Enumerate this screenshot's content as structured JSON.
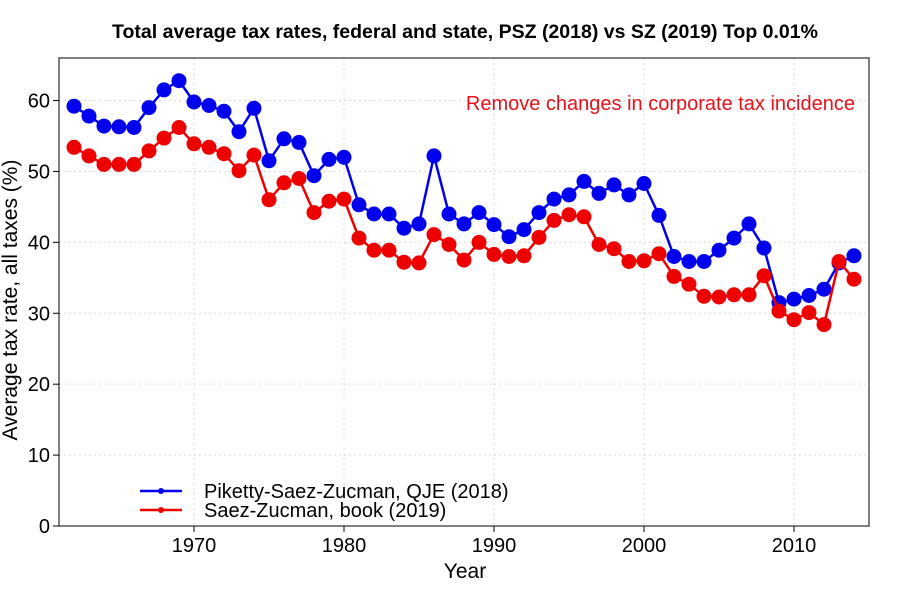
{
  "chart_data": {
    "type": "line",
    "title": "Total average tax rates, federal and state, PSZ (2018) vs SZ (2019) Top 0.01%",
    "xlabel": "Year",
    "ylabel": "Average tax rate, all taxes (%)",
    "xlim": [
      1961,
      2015
    ],
    "ylim": [
      0,
      66
    ],
    "xticks": [
      1970,
      1980,
      1990,
      2000,
      2010
    ],
    "yticks": [
      0,
      10,
      20,
      30,
      40,
      50,
      60
    ],
    "grid": true,
    "legend_position": "bottom-left",
    "annotation": "Remove changes in corporate tax incidence",
    "annotation_color": "#e8101a",
    "x": [
      1962,
      1963,
      1964,
      1965,
      1966,
      1967,
      1968,
      1969,
      1970,
      1971,
      1972,
      1973,
      1974,
      1975,
      1976,
      1977,
      1978,
      1979,
      1980,
      1981,
      1982,
      1983,
      1984,
      1985,
      1986,
      1987,
      1988,
      1989,
      1990,
      1991,
      1992,
      1993,
      1994,
      1995,
      1996,
      1997,
      1998,
      1999,
      2000,
      2001,
      2002,
      2003,
      2004,
      2005,
      2006,
      2007,
      2008,
      2009,
      2010,
      2011,
      2012,
      2013,
      2014
    ],
    "series": [
      {
        "name": "Piketty-Saez-Zucman, QJE (2018)",
        "color": "#0000ee",
        "values": [
          59.2,
          57.8,
          56.4,
          56.3,
          56.2,
          59.0,
          61.5,
          62.8,
          59.8,
          59.3,
          58.5,
          55.6,
          58.9,
          51.5,
          54.6,
          54.1,
          49.4,
          51.7,
          52.0,
          45.3,
          44.0,
          44.0,
          42.0,
          42.6,
          52.2,
          44.0,
          42.6,
          44.2,
          42.5,
          40.8,
          41.8,
          44.2,
          46.1,
          46.7,
          48.6,
          46.9,
          48.1,
          46.7,
          48.3,
          43.8,
          38.0,
          37.3,
          37.3,
          38.9,
          40.6,
          42.6,
          39.2,
          31.5,
          32.0,
          32.5,
          33.4,
          37.1,
          38.1
        ]
      },
      {
        "name": "Saez-Zucman, book (2019)",
        "color": "#ee0000",
        "values": [
          53.4,
          52.2,
          51.0,
          51.0,
          51.0,
          52.9,
          54.7,
          56.2,
          53.9,
          53.4,
          52.5,
          50.1,
          52.3,
          46.0,
          48.4,
          49.0,
          44.2,
          45.8,
          46.1,
          40.6,
          38.9,
          38.9,
          37.2,
          37.1,
          41.1,
          39.7,
          37.5,
          40.0,
          38.3,
          38.0,
          38.1,
          40.7,
          43.1,
          43.9,
          43.6,
          39.7,
          39.1,
          37.3,
          37.4,
          38.4,
          35.2,
          34.1,
          32.4,
          32.3,
          32.6,
          32.6,
          35.3,
          30.3,
          29.1,
          30.1,
          28.4,
          37.3,
          34.8
        ]
      }
    ]
  }
}
